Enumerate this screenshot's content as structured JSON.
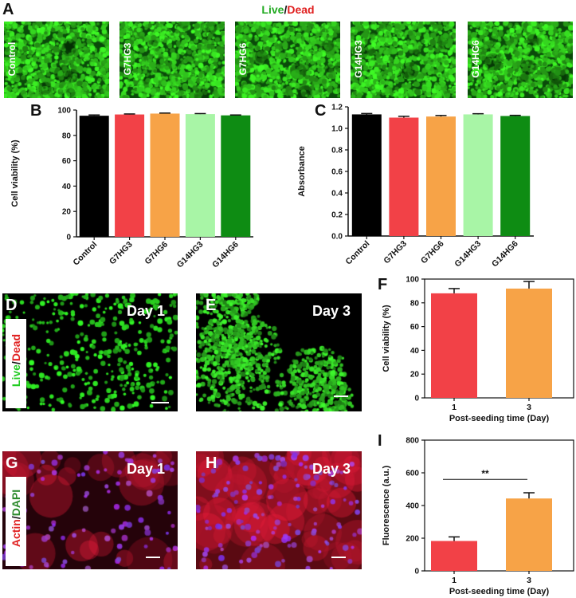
{
  "panel_a": {
    "letter": "A",
    "title_live": "Live",
    "title_sep": "/",
    "title_dead": "Dead",
    "images": [
      "Control",
      "G7HG3",
      "G7HG6",
      "G14HG3",
      "G14HG6"
    ]
  },
  "panel_d": {
    "letter": "D",
    "label": "Day 1",
    "stain_live": "Live",
    "stain_sep": "/",
    "stain_dead": "Dead"
  },
  "panel_e": {
    "letter": "E",
    "label": "Day 3"
  },
  "panel_g": {
    "letter": "G",
    "label": "Day 1",
    "stain_actin": "Actin",
    "stain_sep": "/",
    "stain_dapi": "DAPI"
  },
  "panel_h": {
    "letter": "H",
    "label": "Day 3"
  },
  "colors": {
    "control": "#000000",
    "g7hg3": "#f24147",
    "g7hg6": "#f7a347",
    "g14hg3": "#a8f5a6",
    "g14hg6": "#0e8c13",
    "live": "#22cc22",
    "dead": "#e02020",
    "actin": "#e02020",
    "dapi": "#2c8a2c"
  },
  "chart_data": [
    {
      "id": "B",
      "letter": "B",
      "type": "bar",
      "categories": [
        "Control",
        "G7HG3",
        "G7HG6",
        "G14HG3",
        "G14HG6"
      ],
      "values": [
        95.5,
        96.5,
        97.2,
        96.8,
        95.8
      ],
      "errors": [
        0.6,
        0.4,
        0.4,
        0.4,
        0.3
      ],
      "ylabel": "Cell viability (%)",
      "xlabel": "",
      "ylim": [
        0,
        100
      ],
      "yticks": [
        0,
        20,
        40,
        60,
        80,
        100
      ],
      "yticklabels": [
        "0",
        "20",
        "40",
        "60",
        "80",
        "100"
      ]
    },
    {
      "id": "C",
      "letter": "C",
      "type": "bar",
      "categories": [
        "Control",
        "G7HG3",
        "G7HG6",
        "G14HG3",
        "G14HG6"
      ],
      "values": [
        1.13,
        1.1,
        1.11,
        1.13,
        1.115
      ],
      "errors": [
        0.008,
        0.012,
        0.01,
        0.006,
        0.006
      ],
      "ylabel": "Absorbance",
      "xlabel": "",
      "ylim": [
        0,
        1.2
      ],
      "yticks": [
        0,
        0.2,
        0.4,
        0.6,
        0.8,
        1.0,
        1.2
      ],
      "yticklabels": [
        "0.0",
        "0.2",
        "0.4",
        "0.6",
        "0.8",
        "1.0",
        "1.2"
      ]
    },
    {
      "id": "F",
      "letter": "F",
      "type": "bar",
      "categories": [
        "1",
        "3"
      ],
      "values": [
        88,
        92
      ],
      "errors": [
        4,
        6
      ],
      "ylabel": "Cell viability (%)",
      "xlabel": "Post-seeding time (Day)",
      "ylim": [
        0,
        100
      ],
      "yticks": [
        0,
        20,
        40,
        60,
        80,
        100
      ],
      "yticklabels": [
        "0",
        "20",
        "40",
        "60",
        "80",
        "100"
      ]
    },
    {
      "id": "I",
      "letter": "I",
      "type": "bar",
      "categories": [
        "1",
        "3"
      ],
      "values": [
        183,
        443
      ],
      "errors": [
        25,
        35
      ],
      "ylabel": "Fluorescence (a.u.)",
      "xlabel": "Post-seeding time (Day)",
      "ylim": [
        0,
        800
      ],
      "yticks": [
        0,
        200,
        400,
        600,
        800
      ],
      "yticklabels": [
        "0",
        "200",
        "400",
        "600",
        "800"
      ],
      "annotation": "**"
    }
  ]
}
